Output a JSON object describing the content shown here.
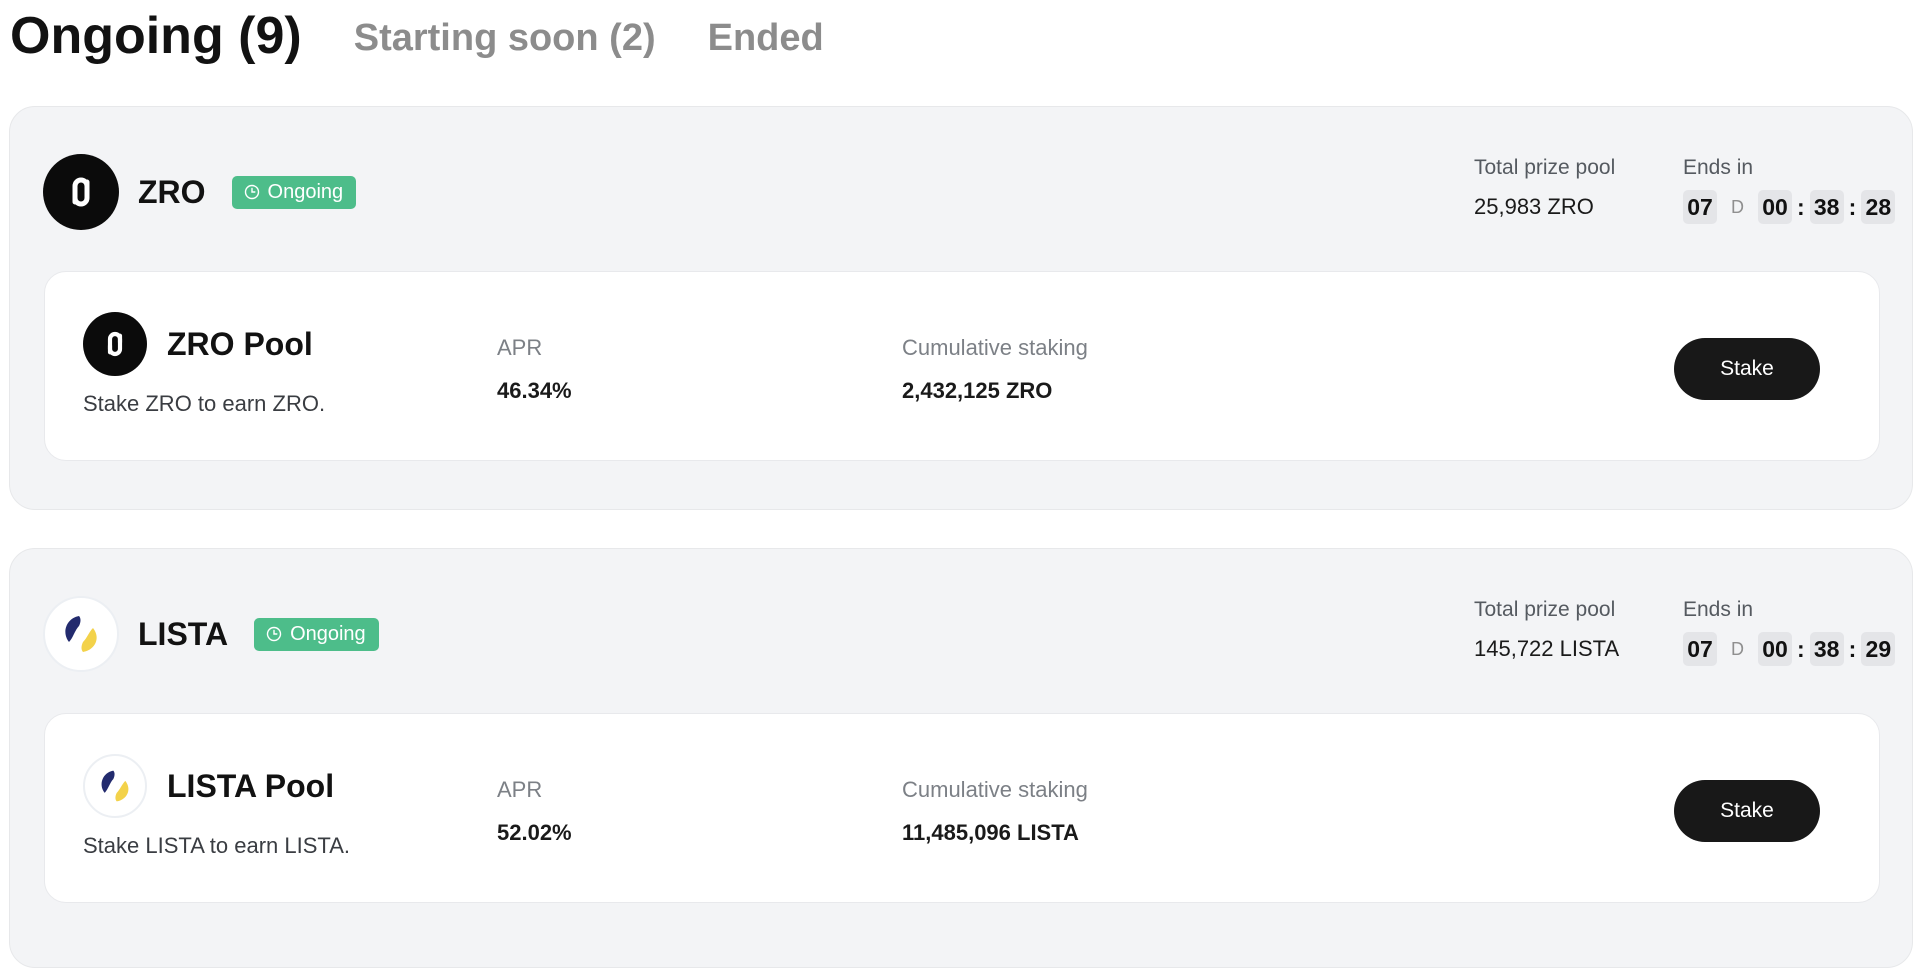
{
  "tabs": {
    "ongoing": "Ongoing (9)",
    "starting_soon": "Starting soon (2)",
    "ended": "Ended"
  },
  "colors": {
    "badge": "#4dbd8a",
    "button": "#181818",
    "card": "#f3f4f6",
    "lista_navy": "#232b6e",
    "lista_yellow": "#f3d24a"
  },
  "projects": [
    {
      "name": "ZRO",
      "logo": "layerzero-logo-icon",
      "status": "Ongoing",
      "prize_label": "Total prize pool",
      "prize_value": "25,983 ZRO",
      "ends_label": "Ends in",
      "countdown": {
        "days": "07",
        "days_unit": "D",
        "hours": "00",
        "minutes": "38",
        "seconds": "28"
      },
      "pool": {
        "name": "ZRO Pool",
        "description": "Stake ZRO to earn ZRO.",
        "apr_label": "APR",
        "apr_value": "46.34%",
        "staking_label": "Cumulative staking",
        "staking_value": "2,432,125 ZRO",
        "button": "Stake"
      }
    },
    {
      "name": "LISTA",
      "logo": "lista-logo-icon",
      "status": "Ongoing",
      "prize_label": "Total prize pool",
      "prize_value": "145,722 LISTA",
      "ends_label": "Ends in",
      "countdown": {
        "days": "07",
        "days_unit": "D",
        "hours": "00",
        "minutes": "38",
        "seconds": "29"
      },
      "pool": {
        "name": "LISTA Pool",
        "description": "Stake LISTA to earn LISTA.",
        "apr_label": "APR",
        "apr_value": "52.02%",
        "staking_label": "Cumulative staking",
        "staking_value": "11,485,096 LISTA",
        "button": "Stake"
      }
    }
  ]
}
